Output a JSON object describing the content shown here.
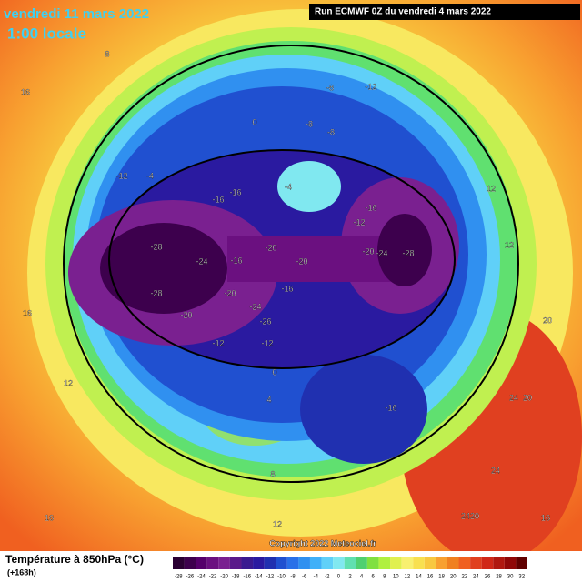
{
  "header": {
    "date": "vendredi 11 mars 2022",
    "time": "1:00 locale",
    "run": "Run ECMWF 0Z du vendredi 4 mars 2022"
  },
  "copyright": "Copyright 2022 Meteociel.fr",
  "footer": {
    "title": "Température à 850hPa (°C)",
    "lead": "(+168h)"
  },
  "scale": [
    {
      "label": "-28",
      "color": "#2a0033"
    },
    {
      "label": "-26",
      "color": "#3d004d"
    },
    {
      "label": "-24",
      "color": "#55006b"
    },
    {
      "label": "-22",
      "color": "#6b1080"
    },
    {
      "label": "-20",
      "color": "#7a2090"
    },
    {
      "label": "-18",
      "color": "#5a1a8a"
    },
    {
      "label": "-16",
      "color": "#3a1a90"
    },
    {
      "label": "-14",
      "color": "#2a1aa0"
    },
    {
      "label": "-12",
      "color": "#2030b0"
    },
    {
      "label": "-10",
      "color": "#2050d0"
    },
    {
      "label": "-8",
      "color": "#2a70e8"
    },
    {
      "label": "-6",
      "color": "#3090f0"
    },
    {
      "label": "-4",
      "color": "#40b0f8"
    },
    {
      "label": "-2",
      "color": "#60d0f8"
    },
    {
      "label": "0",
      "color": "#80e8f0"
    },
    {
      "label": "2",
      "color": "#60e0b0"
    },
    {
      "label": "4",
      "color": "#50d070"
    },
    {
      "label": "6",
      "color": "#80e040"
    },
    {
      "label": "8",
      "color": "#b0f040"
    },
    {
      "label": "10",
      "color": "#e0f050"
    },
    {
      "label": "12",
      "color": "#f8f070"
    },
    {
      "label": "14",
      "color": "#f8e050"
    },
    {
      "label": "16",
      "color": "#f8c840"
    },
    {
      "label": "18",
      "color": "#f8a030"
    },
    {
      "label": "20",
      "color": "#f08020"
    },
    {
      "label": "22",
      "color": "#f06020"
    },
    {
      "label": "24",
      "color": "#e04020"
    },
    {
      "label": "26",
      "color": "#d02818"
    },
    {
      "label": "28",
      "color": "#b01810"
    },
    {
      "label": "30",
      "color": "#900808"
    },
    {
      "label": "32",
      "color": "#600000"
    }
  ],
  "map_labels": [
    "-28",
    "-24",
    "-28",
    "-20",
    "-16",
    "-20",
    "-24",
    "-26",
    "-20",
    "-20",
    "-16",
    "-12",
    "-12",
    "-20",
    "-24",
    "-28",
    "-16",
    "-12",
    "-16",
    "-16",
    "-12",
    "-4",
    "-8",
    "-12",
    "-8",
    "-8",
    "-4",
    "-16",
    "0",
    "4",
    "8",
    "12",
    "16",
    "12",
    "16",
    "8",
    "20",
    "24",
    "20",
    "24",
    "12",
    "16",
    "24",
    "20",
    "0",
    "16",
    "12"
  ]
}
